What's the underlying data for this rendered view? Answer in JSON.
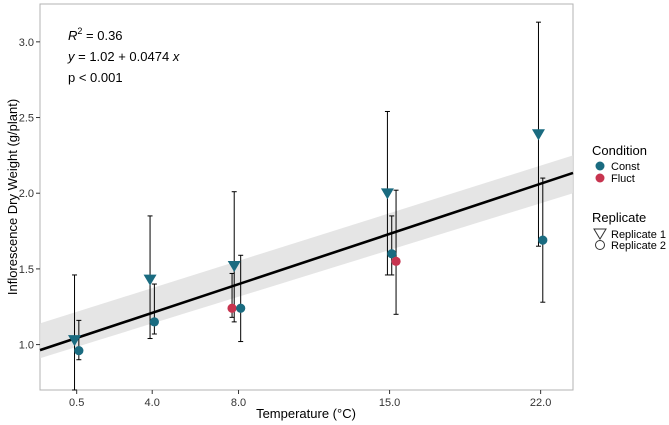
{
  "chart_data": {
    "type": "scatter",
    "xlabel": "Temperature (°C)",
    "ylabel": "Inflorescence Dry Weight (g/plant)",
    "xlim": [
      -1.2,
      23.5
    ],
    "ylim": [
      0.7,
      3.25
    ],
    "x_ticks": [
      0.5,
      4.0,
      8.0,
      15.0,
      22.0
    ],
    "x_tick_labels": [
      "0.5",
      "4.0",
      "8.0",
      "15.0",
      "22.0"
    ],
    "y_ticks": [
      1.0,
      1.5,
      2.0,
      2.5,
      3.0
    ],
    "y_tick_labels": [
      "1.0",
      "1.5",
      "2.0",
      "2.5",
      "3.0"
    ],
    "grid": false,
    "annotations": {
      "r2_prefix": "R",
      "r2_sup": "2",
      "r2_value": " = 0.36",
      "equation_y": "y",
      "equation_mid": " = 1.02 + 0.0474 ",
      "equation_x": "x",
      "pvalue": "p < 0.001"
    },
    "regression": {
      "intercept": 1.02,
      "slope": 0.0474,
      "x_range": [
        -1.2,
        23.5
      ],
      "ci_at_x_min": [
        0.91,
        1.14
      ],
      "ci_at_x_max": [
        2.0,
        2.25
      ]
    },
    "legend": {
      "placement": "right",
      "condition_title": "Condition",
      "condition_items": [
        {
          "label": "Const",
          "color": "#1a6b80"
        },
        {
          "label": "Fluct",
          "color": "#c7344f"
        }
      ],
      "replicate_title": "Replicate",
      "replicate_items": [
        {
          "label": "Replicate 1",
          "shape": "triangle-down"
        },
        {
          "label": "Replicate 2",
          "shape": "circle"
        }
      ]
    },
    "series": [
      {
        "condition": "Const",
        "replicate": "Replicate 1",
        "x": 0.4,
        "y": 1.03,
        "err_low": 0.7,
        "err_high": 1.46
      },
      {
        "condition": "Const",
        "replicate": "Replicate 2",
        "x": 0.6,
        "y": 0.96,
        "err_low": 0.9,
        "err_high": 1.16
      },
      {
        "condition": "Const",
        "replicate": "Replicate 1",
        "x": 3.9,
        "y": 1.43,
        "err_low": 1.04,
        "err_high": 1.85
      },
      {
        "condition": "Const",
        "replicate": "Replicate 2",
        "x": 4.1,
        "y": 1.15,
        "err_low": 1.07,
        "err_high": 1.4
      },
      {
        "condition": "Const",
        "replicate": "Replicate 1",
        "x": 7.8,
        "y": 1.52,
        "err_low": 1.15,
        "err_high": 2.01
      },
      {
        "condition": "Fluct",
        "replicate": "Replicate 2",
        "x": 7.7,
        "y": 1.24,
        "err_low": 1.18,
        "err_high": 1.47
      },
      {
        "condition": "Const",
        "replicate": "Replicate 2",
        "x": 8.1,
        "y": 1.24,
        "err_low": 1.02,
        "err_high": 1.59
      },
      {
        "condition": "Const",
        "replicate": "Replicate 1",
        "x": 14.9,
        "y": 2.0,
        "err_low": 1.46,
        "err_high": 2.54
      },
      {
        "condition": "Const",
        "replicate": "Replicate 2",
        "x": 15.1,
        "y": 1.6,
        "err_low": 1.46,
        "err_high": 1.85
      },
      {
        "condition": "Fluct",
        "replicate": "Replicate 2",
        "x": 15.3,
        "y": 1.55,
        "err_low": 1.2,
        "err_high": 2.02
      },
      {
        "condition": "Const",
        "replicate": "Replicate 1",
        "x": 21.9,
        "y": 2.39,
        "err_low": 1.65,
        "err_high": 3.13
      },
      {
        "condition": "Const",
        "replicate": "Replicate 2",
        "x": 22.1,
        "y": 1.69,
        "err_low": 1.28,
        "err_high": 2.1
      }
    ]
  }
}
